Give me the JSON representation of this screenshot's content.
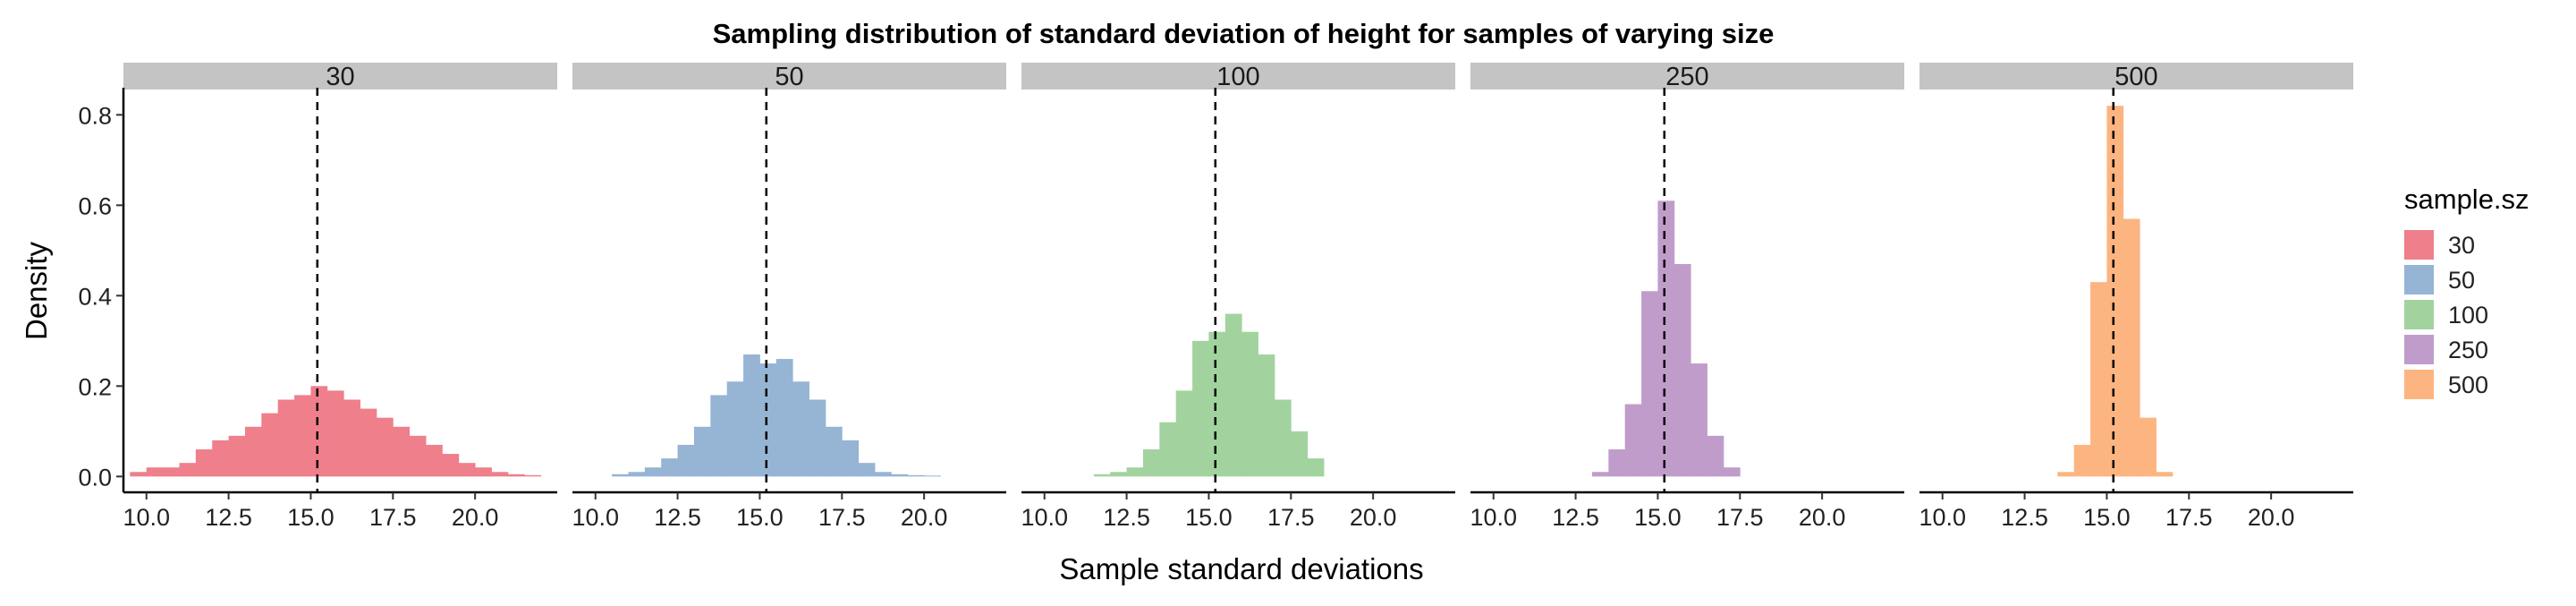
{
  "chart_data": {
    "type": "bar",
    "title": "Sampling distribution of standard deviation of height for samples of varying size",
    "xlabel": "Sample standard deviations",
    "ylabel": "Density",
    "xlim": [
      9.3,
      22.5
    ],
    "ylim": [
      -0.035,
      0.86
    ],
    "x_ticks": [
      "10.0",
      "12.5",
      "15.0",
      "17.5",
      "20.0"
    ],
    "y_ticks": [
      "0.0",
      "0.2",
      "0.4",
      "0.6",
      "0.8"
    ],
    "bin_width": 0.5,
    "reference_line": 15.2,
    "legend": {
      "title": "sample.sz",
      "position": "right"
    },
    "grid": false,
    "strip_color": "#c4c4c4",
    "panels": [
      {
        "name": "30",
        "color": "#ee7f8b",
        "bin_starts": [
          9.5,
          10.0,
          10.5,
          11.0,
          11.5,
          12.0,
          12.5,
          13.0,
          13.5,
          14.0,
          14.5,
          15.0,
          15.5,
          16.0,
          16.5,
          17.0,
          17.5,
          18.0,
          18.5,
          19.0,
          19.5,
          20.0,
          20.5,
          21.0,
          21.5
        ],
        "values": [
          0.01,
          0.02,
          0.02,
          0.03,
          0.06,
          0.08,
          0.09,
          0.11,
          0.14,
          0.17,
          0.18,
          0.2,
          0.19,
          0.17,
          0.15,
          0.13,
          0.11,
          0.09,
          0.07,
          0.05,
          0.03,
          0.02,
          0.01,
          0.005,
          0.003
        ]
      },
      {
        "name": "50",
        "color": "#96b4d4",
        "bin_starts": [
          10.5,
          11.0,
          11.5,
          12.0,
          12.5,
          13.0,
          13.5,
          14.0,
          14.5,
          15.0,
          15.5,
          16.0,
          16.5,
          17.0,
          17.5,
          18.0,
          18.5,
          19.0,
          19.5,
          20.0
        ],
        "values": [
          0.005,
          0.01,
          0.02,
          0.04,
          0.07,
          0.11,
          0.18,
          0.21,
          0.27,
          0.25,
          0.26,
          0.21,
          0.17,
          0.11,
          0.08,
          0.03,
          0.01,
          0.005,
          0.003,
          0.002
        ]
      },
      {
        "name": "100",
        "color": "#a2d39f",
        "bin_starts": [
          11.5,
          12.0,
          12.5,
          13.0,
          13.5,
          14.0,
          14.5,
          15.0,
          15.5,
          16.0,
          16.5,
          17.0,
          17.5,
          18.0
        ],
        "values": [
          0.005,
          0.01,
          0.02,
          0.06,
          0.12,
          0.19,
          0.3,
          0.32,
          0.36,
          0.32,
          0.27,
          0.17,
          0.1,
          0.04
        ]
      },
      {
        "name": "250",
        "color": "#c09ccb",
        "bin_starts": [
          13.0,
          13.5,
          14.0,
          14.5,
          15.0,
          15.5,
          16.0,
          16.5,
          17.0
        ],
        "values": [
          0.01,
          0.06,
          0.16,
          0.41,
          0.61,
          0.47,
          0.25,
          0.09,
          0.02
        ]
      },
      {
        "name": "500",
        "color": "#fcb580",
        "bin_starts": [
          13.5,
          14.0,
          14.5,
          15.0,
          15.5,
          16.0,
          16.5
        ],
        "values": [
          0.01,
          0.07,
          0.43,
          0.82,
          0.57,
          0.13,
          0.01
        ]
      }
    ]
  }
}
